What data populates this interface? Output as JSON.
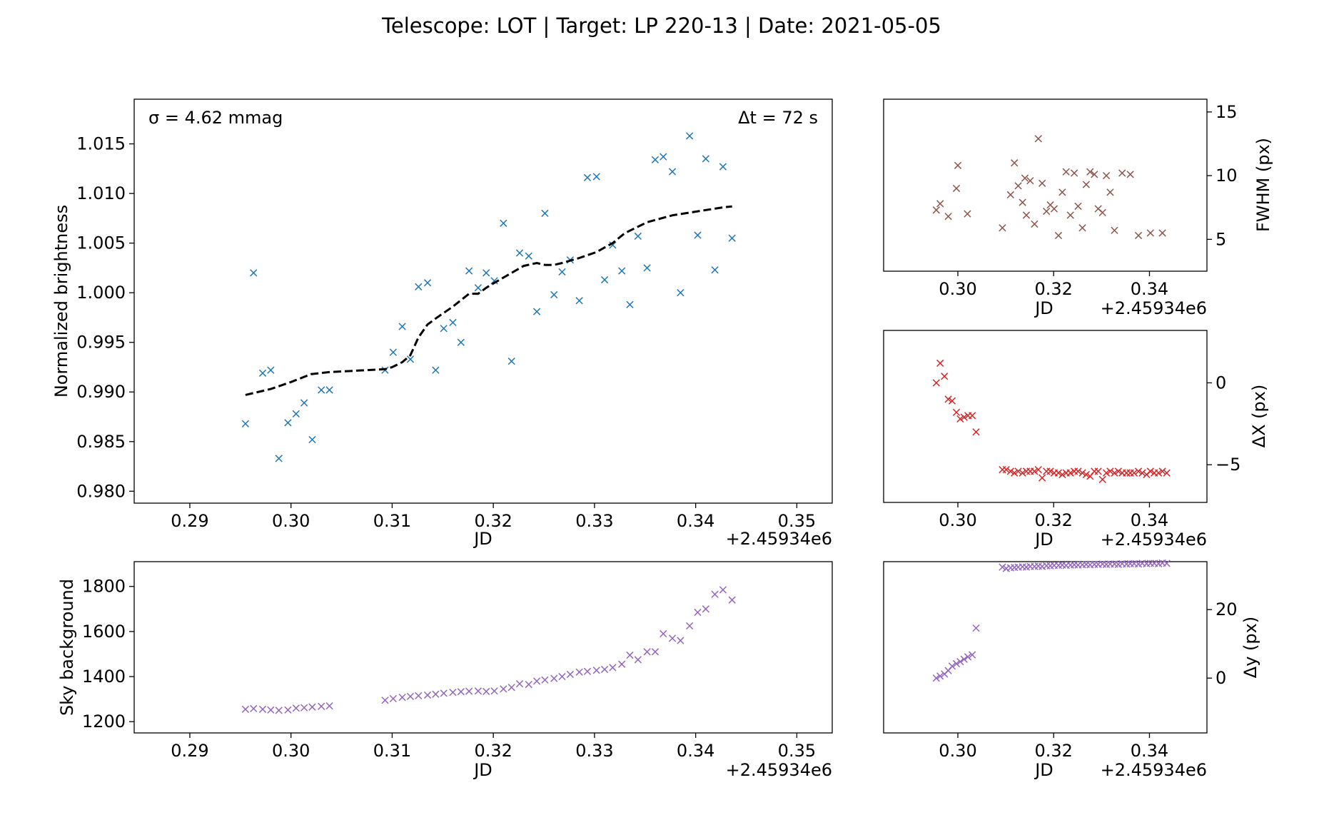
{
  "suptitle": "Telescope: LOT  |  Target: LP 220-13  |  Date: 2021-05-05",
  "chart_data": [
    {
      "id": "lc",
      "type": "scatter",
      "xlabel": "JD",
      "x_offset_label": "+2.45934e6",
      "ylabel": "Normalized brightness",
      "xlim": [
        0.2845,
        0.3535
      ],
      "ylim": [
        0.9788,
        1.0195
      ],
      "xticks": [
        0.29,
        0.3,
        0.31,
        0.32,
        0.33,
        0.34,
        0.35
      ],
      "xtick_labels": [
        "0.29",
        "0.30",
        "0.31",
        "0.32",
        "0.33",
        "0.34",
        "0.35"
      ],
      "yticks": [
        0.98,
        0.985,
        0.99,
        0.995,
        1.0,
        1.005,
        1.01,
        1.015
      ],
      "ytick_labels": [
        "0.980",
        "0.985",
        "0.990",
        "0.995",
        "1.000",
        "1.005",
        "1.010",
        "1.015"
      ],
      "annotation_left": "σ = 4.62 mmag",
      "annotation_right": "Δt = 72 s",
      "series": [
        {
          "marker": "x",
          "color": "#1f77b4",
          "x": [
            0.2955,
            0.2963,
            0.2972,
            0.298,
            0.2988,
            0.2997,
            0.3005,
            0.3013,
            0.3021,
            0.303,
            0.3038,
            0.3093,
            0.3101,
            0.311,
            0.3118,
            0.3126,
            0.3135,
            0.3143,
            0.3151,
            0.316,
            0.3168,
            0.3176,
            0.3185,
            0.3193,
            0.3201,
            0.321,
            0.3218,
            0.3226,
            0.3235,
            0.3243,
            0.3251,
            0.326,
            0.3268,
            0.3276,
            0.3285,
            0.3293,
            0.3302,
            0.331,
            0.3318,
            0.3327,
            0.3335,
            0.3343,
            0.3352,
            0.336,
            0.3368,
            0.3377,
            0.3385,
            0.3394,
            0.3402,
            0.341,
            0.3419,
            0.3427,
            0.3436
          ],
          "y": [
            0.9868,
            1.002,
            0.9919,
            0.9922,
            0.9833,
            0.9869,
            0.9878,
            0.9889,
            0.9852,
            0.9902,
            0.9902,
            0.9922,
            0.994,
            0.9966,
            0.9933,
            1.0006,
            1.001,
            0.9922,
            0.9964,
            0.997,
            0.995,
            1.0022,
            1.0005,
            1.002,
            1.0012,
            1.007,
            0.9931,
            1.004,
            1.0037,
            0.9981,
            1.008,
            0.9998,
            1.0021,
            1.0033,
            0.9992,
            1.0116,
            1.0117,
            1.0013,
            1.0048,
            1.0022,
            0.9988,
            1.0057,
            1.0025,
            1.0134,
            1.0137,
            1.0122,
            1.0,
            1.0158,
            1.0058,
            1.0135,
            1.0023,
            1.0127,
            1.0055
          ]
        },
        {
          "marker": "dashed-line",
          "color": "#000000",
          "x": [
            0.2955,
            0.298,
            0.3,
            0.302,
            0.3038,
            0.3093,
            0.31,
            0.311,
            0.3118,
            0.3126,
            0.3135,
            0.3143,
            0.316,
            0.3176,
            0.3185,
            0.3193,
            0.3201,
            0.3218,
            0.323,
            0.3243,
            0.3251,
            0.326,
            0.3268,
            0.3285,
            0.3302,
            0.3318,
            0.333,
            0.3352,
            0.3377,
            0.3402,
            0.3427,
            0.3436
          ],
          "y": [
            0.9897,
            0.9903,
            0.991,
            0.9918,
            0.992,
            0.9923,
            0.9925,
            0.993,
            0.9937,
            0.9955,
            0.9968,
            0.9974,
            0.9986,
            0.9999,
            0.9999,
            1.0005,
            1.001,
            1.002,
            1.0027,
            1.003,
            1.0028,
            1.0028,
            1.003,
            1.0035,
            1.0041,
            1.005,
            1.006,
            1.0071,
            1.0078,
            1.0082,
            1.0086,
            1.0087
          ]
        }
      ]
    },
    {
      "id": "sky",
      "type": "scatter",
      "xlabel": "JD",
      "x_offset_label": "+2.45934e6",
      "ylabel": "Sky background",
      "xlim": [
        0.2845,
        0.3535
      ],
      "ylim": [
        1150,
        1910
      ],
      "xticks": [
        0.29,
        0.3,
        0.31,
        0.32,
        0.33,
        0.34,
        0.35
      ],
      "xtick_labels": [
        "0.29",
        "0.30",
        "0.31",
        "0.32",
        "0.33",
        "0.34",
        "0.35"
      ],
      "yticks": [
        1200,
        1400,
        1600,
        1800
      ],
      "ytick_labels": [
        "1200",
        "1400",
        "1600",
        "1800"
      ],
      "series": [
        {
          "marker": "x",
          "color": "#9467bd",
          "x": [
            0.2955,
            0.2963,
            0.2972,
            0.298,
            0.2988,
            0.2997,
            0.3005,
            0.3013,
            0.3021,
            0.303,
            0.3038,
            0.3093,
            0.3101,
            0.311,
            0.3118,
            0.3126,
            0.3135,
            0.3143,
            0.3151,
            0.316,
            0.3168,
            0.3176,
            0.3185,
            0.3193,
            0.3201,
            0.321,
            0.3218,
            0.3226,
            0.3235,
            0.3243,
            0.3251,
            0.326,
            0.3268,
            0.3276,
            0.3285,
            0.3293,
            0.3302,
            0.331,
            0.3318,
            0.3327,
            0.3335,
            0.3343,
            0.3352,
            0.336,
            0.3368,
            0.3377,
            0.3385,
            0.3394,
            0.3402,
            0.341,
            0.3419,
            0.3427,
            0.3436
          ],
          "y": [
            1255,
            1258,
            1255,
            1252,
            1250,
            1252,
            1260,
            1262,
            1265,
            1268,
            1270,
            1295,
            1302,
            1308,
            1312,
            1315,
            1318,
            1322,
            1326,
            1330,
            1333,
            1335,
            1336,
            1334,
            1336,
            1345,
            1352,
            1368,
            1365,
            1380,
            1385,
            1392,
            1400,
            1410,
            1420,
            1423,
            1428,
            1432,
            1440,
            1455,
            1495,
            1475,
            1510,
            1510,
            1590,
            1570,
            1560,
            1625,
            1685,
            1700,
            1765,
            1785,
            1740
          ]
        }
      ]
    },
    {
      "id": "fwhm",
      "type": "scatter",
      "xlabel": "JD",
      "x_offset_label": "+2.45934e6",
      "ylabel": "FWHM (px)",
      "xlim": [
        0.2845,
        0.352
      ],
      "ylim": [
        2.5,
        16.0
      ],
      "xticks": [
        0.3,
        0.32,
        0.34
      ],
      "xtick_labels": [
        "0.30",
        "0.32",
        "0.34"
      ],
      "yticks": [
        5,
        10,
        15
      ],
      "ytick_labels": [
        "5",
        "10",
        "15"
      ],
      "series": [
        {
          "marker": "x",
          "color": "#8c564b",
          "x": [
            0.2955,
            0.2963,
            0.298,
            0.2997,
            0.3,
            0.302,
            0.3093,
            0.311,
            0.3118,
            0.3126,
            0.3135,
            0.314,
            0.3143,
            0.3151,
            0.316,
            0.3168,
            0.3176,
            0.3185,
            0.3193,
            0.3201,
            0.321,
            0.3218,
            0.3226,
            0.3235,
            0.3243,
            0.3251,
            0.326,
            0.3268,
            0.3276,
            0.3285,
            0.3293,
            0.3302,
            0.331,
            0.3318,
            0.3327,
            0.3343,
            0.336,
            0.3377,
            0.3402,
            0.3427
          ],
          "y": [
            7.3,
            7.8,
            6.8,
            9.0,
            10.8,
            7.0,
            5.9,
            8.5,
            11.0,
            9.2,
            7.9,
            9.8,
            6.9,
            9.6,
            6.2,
            12.9,
            9.4,
            7.2,
            7.7,
            7.4,
            5.3,
            8.7,
            10.3,
            6.9,
            10.2,
            7.6,
            5.9,
            9.3,
            10.3,
            10.1,
            7.4,
            7.1,
            10.0,
            8.7,
            5.7,
            10.2,
            10.1,
            5.3,
            5.5,
            5.5
          ]
        }
      ]
    },
    {
      "id": "dx",
      "type": "scatter",
      "xlabel": "JD",
      "x_offset_label": "+2.45934e6",
      "ylabel": "ΔX (px)",
      "xlim": [
        0.2845,
        0.352
      ],
      "ylim": [
        -7.3,
        3.2
      ],
      "xticks": [
        0.3,
        0.32,
        0.34
      ],
      "xtick_labels": [
        "0.30",
        "0.32",
        "0.34"
      ],
      "yticks": [
        -5,
        0
      ],
      "ytick_labels": [
        "−5",
        "0"
      ],
      "series": [
        {
          "marker": "x",
          "color": "#d62728",
          "x": [
            0.2955,
            0.2963,
            0.2972,
            0.298,
            0.2988,
            0.2997,
            0.3005,
            0.3013,
            0.3021,
            0.303,
            0.3038,
            0.3093,
            0.3101,
            0.311,
            0.3118,
            0.3126,
            0.3135,
            0.3143,
            0.3151,
            0.316,
            0.3168,
            0.3176,
            0.3185,
            0.3193,
            0.3201,
            0.321,
            0.3218,
            0.3226,
            0.3235,
            0.3243,
            0.3251,
            0.326,
            0.3268,
            0.3276,
            0.3285,
            0.3293,
            0.3302,
            0.331,
            0.3318,
            0.3327,
            0.3335,
            0.3343,
            0.3352,
            0.336,
            0.3368,
            0.3377,
            0.3385,
            0.3394,
            0.3402,
            0.341,
            0.3419,
            0.3427,
            0.3436
          ],
          "y": [
            0.0,
            1.2,
            0.4,
            -1.0,
            -1.1,
            -1.8,
            -2.2,
            -2.1,
            -2.0,
            -2.0,
            -3.0,
            -5.3,
            -5.3,
            -5.4,
            -5.5,
            -5.4,
            -5.5,
            -5.4,
            -5.4,
            -5.4,
            -5.3,
            -5.8,
            -5.4,
            -5.4,
            -5.5,
            -5.5,
            -5.6,
            -5.5,
            -5.5,
            -5.4,
            -5.4,
            -5.5,
            -5.6,
            -5.7,
            -5.4,
            -5.4,
            -5.9,
            -5.5,
            -5.4,
            -5.5,
            -5.4,
            -5.5,
            -5.5,
            -5.5,
            -5.5,
            -5.4,
            -5.5,
            -5.6,
            -5.4,
            -5.5,
            -5.5,
            -5.4,
            -5.5
          ]
        }
      ]
    },
    {
      "id": "dy",
      "type": "scatter",
      "xlabel": "JD",
      "x_offset_label": "+2.45934e6",
      "ylabel": "Δy (px)",
      "xlim": [
        0.2845,
        0.352
      ],
      "ylim": [
        -16.0,
        34.0
      ],
      "xticks": [
        0.3,
        0.32,
        0.34
      ],
      "xtick_labels": [
        "0.30",
        "0.32",
        "0.34"
      ],
      "yticks": [
        0,
        20
      ],
      "ytick_labels": [
        "0",
        "20"
      ],
      "series": [
        {
          "marker": "x",
          "color": "#9467bd",
          "x": [
            0.2955,
            0.2963,
            0.2972,
            0.298,
            0.2988,
            0.2997,
            0.3005,
            0.3013,
            0.3021,
            0.303,
            0.3038,
            0.3093,
            0.3101,
            0.311,
            0.3118,
            0.3126,
            0.3135,
            0.3143,
            0.3151,
            0.316,
            0.3168,
            0.3176,
            0.3185,
            0.3193,
            0.3201,
            0.321,
            0.3218,
            0.3226,
            0.3235,
            0.3243,
            0.3251,
            0.326,
            0.3268,
            0.3276,
            0.3285,
            0.3293,
            0.3302,
            0.331,
            0.3318,
            0.3327,
            0.3335,
            0.3343,
            0.3352,
            0.336,
            0.3368,
            0.3377,
            0.3385,
            0.3394,
            0.3402,
            0.341,
            0.3419,
            0.3427,
            0.3436
          ],
          "y": [
            0.0,
            0.6,
            1.2,
            2.2,
            3.5,
            4.2,
            4.8,
            5.5,
            6.2,
            6.8,
            14.6,
            32.4,
            32.0,
            32.2,
            32.3,
            32.4,
            32.5,
            32.4,
            32.6,
            32.6,
            32.7,
            32.6,
            32.8,
            32.8,
            32.9,
            32.9,
            33.0,
            32.9,
            33.0,
            33.1,
            33.0,
            33.1,
            33.2,
            33.1,
            33.2,
            33.2,
            33.3,
            33.2,
            33.3,
            33.3,
            33.2,
            33.4,
            33.3,
            33.4,
            33.4,
            33.3,
            33.5,
            33.4,
            33.5,
            33.5,
            33.4,
            33.6,
            33.5
          ]
        }
      ]
    }
  ]
}
